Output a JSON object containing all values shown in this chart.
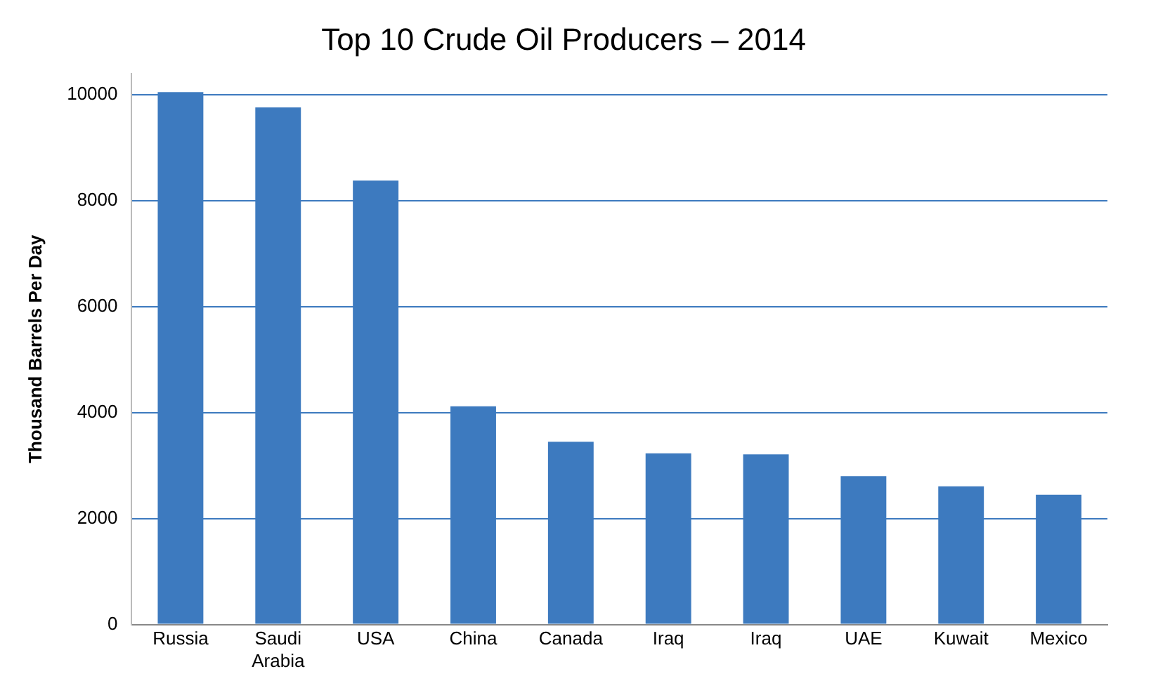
{
  "chart_data": {
    "type": "bar",
    "title": "Top 10 Crude Oil Producers – 2014",
    "ylabel": "Thousand Barrels Per Day",
    "categories": [
      "Russia",
      "Saudi Arabia",
      "USA",
      "China",
      "Canada",
      "Iraq",
      "Iraq",
      "UAE",
      "Kuwait",
      "Mexico"
    ],
    "values": [
      10050,
      9760,
      8380,
      4120,
      3450,
      3230,
      3210,
      2800,
      2610,
      2450
    ],
    "color": "#3d7abf",
    "ylim": [
      0,
      10400
    ],
    "yticks": [
      0,
      2000,
      4000,
      6000,
      8000,
      10000
    ],
    "grid": "y",
    "legend": false
  }
}
